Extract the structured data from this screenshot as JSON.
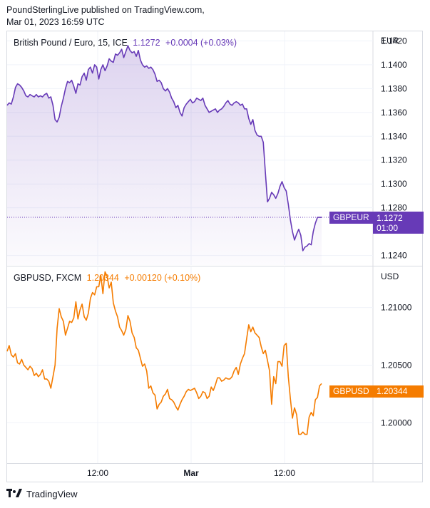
{
  "header": {
    "line1": "PoundSterlingLive published on TradingView.com,",
    "line2": "Mar 01, 2023 16:59 UTC"
  },
  "brand": {
    "name": "TradingView",
    "logo_icon": "tradingview-logo-icon"
  },
  "colors": {
    "purple": "#673ab7",
    "orange": "#f57c00",
    "grid": "#f0f3fa",
    "border": "#d8dbe2"
  },
  "chart_data": [
    {
      "type": "area",
      "legend": {
        "symbol": "British Pound / Euro, 15, ICE",
        "last": "1.1272",
        "change": "+0.0004 (+0.03%)"
      },
      "unit": "EUR",
      "price_tag": {
        "label": "GBPEUR",
        "value": "1.1272",
        "countdown": "01:00"
      },
      "ylim": [
        1.1232,
        1.1428
      ],
      "yticks": [
        "1.1420",
        "1.1400",
        "1.1380",
        "1.1360",
        "1.1340",
        "1.1320",
        "1.1300",
        "1.1280",
        "1.1240"
      ],
      "x": [
        0,
        1,
        2,
        3,
        4,
        5,
        6,
        7,
        8,
        9,
        10,
        11,
        12,
        13,
        14,
        15,
        16,
        17,
        18,
        19,
        20,
        21,
        22,
        23,
        24,
        25,
        26,
        27,
        28,
        29,
        30,
        31,
        32,
        33,
        34,
        35,
        36,
        37,
        38,
        39,
        40,
        41,
        42,
        43,
        44,
        45,
        46,
        47,
        48,
        49,
        50,
        51,
        52,
        53,
        54,
        55,
        56,
        57,
        58,
        59,
        60,
        61,
        62,
        63,
        64,
        65,
        66,
        67,
        68,
        69,
        70,
        71,
        72,
        73,
        74,
        75,
        76,
        77,
        78,
        79,
        80,
        81,
        82,
        83,
        84,
        85,
        86,
        87,
        88,
        89,
        90,
        91,
        92,
        93,
        94,
        95,
        96,
        97,
        98,
        99,
        100,
        101,
        102,
        103,
        104,
        105,
        106,
        107,
        108,
        109,
        110,
        111,
        112,
        113,
        114,
        115,
        116,
        117,
        118,
        119,
        120,
        121,
        122,
        123,
        124,
        125,
        126,
        127,
        128,
        129,
        130,
        131,
        132,
        133,
        134,
        135,
        136,
        137,
        138,
        139,
        140,
        141,
        142,
        143,
        144,
        145,
        146,
        147,
        148,
        149,
        150,
        151,
        152,
        153,
        154,
        155,
        156,
        157,
        158,
        159,
        160,
        161,
        162,
        163,
        164,
        165,
        166,
        167,
        168,
        169,
        170,
        171,
        172,
        173,
        174
      ],
      "values": [
        1.1366,
        1.1368,
        1.1367,
        1.1373,
        1.1381,
        1.1384,
        1.1383,
        1.1381,
        1.1378,
        1.1374,
        1.1373,
        1.1375,
        1.1374,
        1.1373,
        1.1375,
        1.1373,
        1.1374,
        1.1373,
        1.1375,
        1.1376,
        1.1372,
        1.1373,
        1.1366,
        1.1354,
        1.1352,
        1.1356,
        1.1365,
        1.1372,
        1.138,
        1.1386,
        1.1385,
        1.1387,
        1.1382,
        1.1376,
        1.1384,
        1.1383,
        1.139,
        1.1393,
        1.1387,
        1.1396,
        1.1398,
        1.1393,
        1.14,
        1.1398,
        1.1388,
        1.1396,
        1.14,
        1.1395,
        1.1399,
        1.1405,
        1.1403,
        1.1402,
        1.1409,
        1.1408,
        1.141,
        1.1413,
        1.1406,
        1.1411,
        1.1416,
        1.1412,
        1.141,
        1.1411,
        1.1407,
        1.1412,
        1.1404,
        1.14,
        1.1398,
        1.1399,
        1.1397,
        1.1398,
        1.1396,
        1.1392,
        1.1386,
        1.1387,
        1.1385,
        1.138,
        1.1378,
        1.138,
        1.1377,
        1.1372,
        1.1369,
        1.1364,
        1.1366,
        1.136,
        1.1357,
        1.1364,
        1.1367,
        1.1369,
        1.1371,
        1.1368,
        1.1369,
        1.1372,
        1.1371,
        1.137,
        1.1372,
        1.1366,
        1.1363,
        1.136,
        1.1361,
        1.1362,
        1.1363,
        1.136,
        1.1362,
        1.1363,
        1.1365,
        1.1368,
        1.137,
        1.1367,
        1.1366,
        1.1368,
        1.1369,
        1.1368,
        1.1366,
        1.1367,
        1.1363,
        1.1363,
        1.1355,
        1.135,
        1.1354,
        1.1345,
        1.1341,
        1.134,
        1.134,
        1.1335,
        1.131,
        1.1285,
        1.1288,
        1.1293,
        1.1291,
        1.1288,
        1.1292,
        1.1298,
        1.1302,
        1.1297,
        1.1294,
        1.1283,
        1.127,
        1.126,
        1.1253,
        1.1258,
        1.1262,
        1.1257,
        1.1244,
        1.1247,
        1.1248,
        1.125,
        1.1249,
        1.126,
        1.1267,
        1.1272,
        1.1272,
        1.1272,
        1.1272,
        1.1272,
        1.1272,
        1.1272,
        1.1272,
        1.1272,
        1.1272,
        1.1272,
        1.1272,
        1.1272,
        1.1272,
        1.1272,
        1.1272,
        1.1272,
        1.1272,
        1.1272,
        1.1272,
        1.1272,
        1.1272,
        1.1272,
        1.1272,
        1.1272,
        1.1272
      ],
      "valid_count": 152
    },
    {
      "type": "line",
      "legend": {
        "symbol": "GBPUSD, FXCM",
        "last": "1.20344",
        "change": "+0.00120 (+0.10%)"
      },
      "unit": "USD",
      "price_tag": {
        "label": "GBPUSD",
        "value": "1.20344"
      },
      "ylim": [
        1.1965,
        1.2135
      ],
      "yticks": [
        "1.21000",
        "1.20500",
        "1.20000"
      ],
      "values": [
        1.2062,
        1.2067,
        1.2059,
        1.2057,
        1.206,
        1.2052,
        1.2051,
        1.2055,
        1.205,
        1.2048,
        1.2046,
        1.2049,
        1.2047,
        1.2041,
        1.2043,
        1.204,
        1.2042,
        1.2046,
        1.2038,
        1.2038,
        1.2036,
        1.203,
        1.204,
        1.205,
        1.2082,
        1.2099,
        1.2092,
        1.2088,
        1.2076,
        1.2082,
        1.2088,
        1.2087,
        1.2091,
        1.2105,
        1.209,
        1.2098,
        1.2103,
        1.2092,
        1.2089,
        1.2095,
        1.2108,
        1.2113,
        1.2111,
        1.2118,
        1.2118,
        1.2128,
        1.2112,
        1.2131,
        1.2127,
        1.2117,
        1.2122,
        1.2104,
        1.2097,
        1.2092,
        1.2083,
        1.208,
        1.2076,
        1.2081,
        1.2093,
        1.2088,
        1.2078,
        1.2074,
        1.2065,
        1.2063,
        1.2056,
        1.2049,
        1.2051,
        1.2045,
        1.203,
        1.2032,
        1.2026,
        1.2024,
        1.2012,
        1.2016,
        1.2018,
        1.2023,
        1.2025,
        1.2029,
        1.2021,
        1.202,
        1.2018,
        1.2014,
        1.2011,
        1.2016,
        1.202,
        1.2023,
        1.2027,
        1.2029,
        1.2028,
        1.2029,
        1.203,
        1.2026,
        1.2021,
        1.2023,
        1.2027,
        1.2026,
        1.2021,
        1.2023,
        1.2031,
        1.2028,
        1.2033,
        1.2039,
        1.2039,
        1.2036,
        1.2037,
        1.2039,
        1.2038,
        1.2038,
        1.204,
        1.2045,
        1.2048,
        1.2042,
        1.2051,
        1.2056,
        1.206,
        1.2073,
        1.2085,
        1.2079,
        1.2083,
        1.2078,
        1.2076,
        1.2074,
        1.2066,
        1.206,
        1.2063,
        1.2054,
        1.2045,
        1.2016,
        1.204,
        1.2034,
        1.2053,
        1.2053,
        1.2049,
        1.2067,
        1.2069,
        1.204,
        1.2021,
        1.2004,
        1.2013,
        1.2007,
        1.199,
        1.199,
        1.1992,
        1.199,
        1.199,
        1.2005,
        1.2009,
        1.2006,
        1.202,
        1.2022,
        1.2032,
        1.2034
      ],
      "valid_count": 152
    }
  ],
  "x_axis": {
    "ticks": [
      "12:00",
      "Mar",
      "12:00"
    ]
  }
}
